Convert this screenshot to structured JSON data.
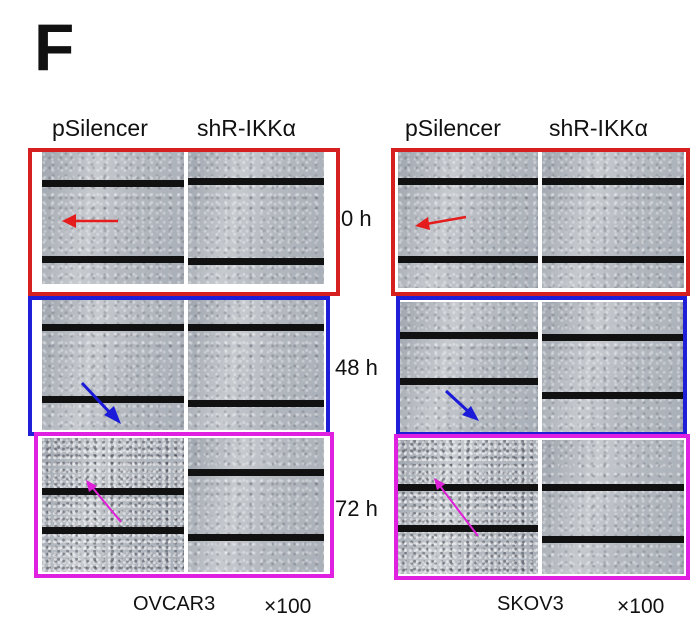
{
  "panel_letter": "F",
  "columns": {
    "control": "pSilencer",
    "knockdown": "shR-IKKα"
  },
  "timepoints": [
    "0 h",
    "48 h",
    "72 h"
  ],
  "cell_lines": [
    "OVCAR3",
    "SKOV3"
  ],
  "magnification": "×100",
  "frame_colors": {
    "0 h": "#d62020",
    "48 h": "#1f1fd8",
    "72 h": "#e020e0"
  }
}
